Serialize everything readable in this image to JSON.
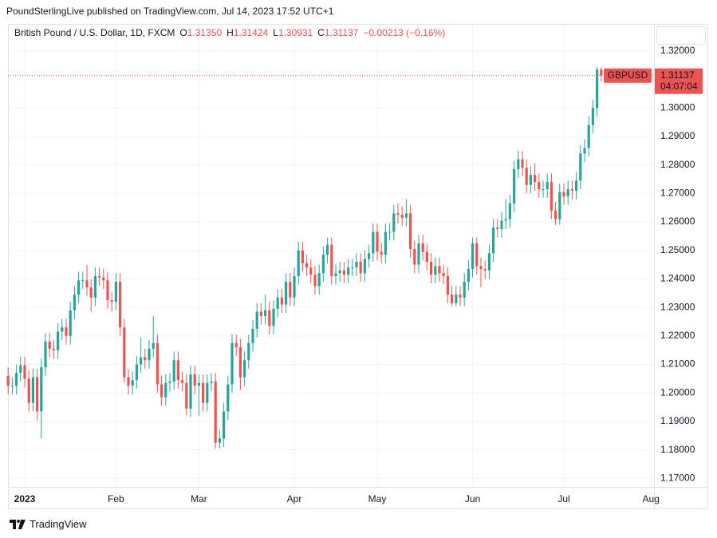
{
  "header": {
    "published": "PoundSterlingLive published on TradingView.com, Jul 14, 2023 17:52 UTC+1",
    "logo": "TradingView"
  },
  "chart_data": {
    "type": "candlestick",
    "title": "British Pound / U.S. Dollar, 1D, FXCM",
    "legend": {
      "o": "O",
      "open": "1.31350",
      "h": "H",
      "l": "L",
      "c": "C",
      "change": "−0.00213 (−0.16%)"
    },
    "symbol_label": "GBPUSD",
    "countdown": "04:07:04",
    "up_color": "#26a69a",
    "down_color": "#ef5350",
    "grid": true,
    "categories": [
      null,
      null,
      null,
      null,
      "2023",
      null,
      null,
      null,
      null,
      null,
      null,
      null,
      null,
      null,
      null,
      null,
      null,
      null,
      null,
      null,
      null,
      null,
      null,
      null,
      null,
      null,
      "Feb",
      null,
      null,
      null,
      null,
      null,
      null,
      null,
      null,
      null,
      null,
      null,
      null,
      null,
      null,
      null,
      null,
      null,
      null,
      null,
      "Mar",
      null,
      null,
      null,
      null,
      null,
      null,
      null,
      null,
      null,
      null,
      null,
      null,
      null,
      null,
      null,
      null,
      null,
      null,
      null,
      null,
      null,
      null,
      "Apr",
      null,
      null,
      null,
      null,
      null,
      null,
      null,
      null,
      null,
      null,
      null,
      null,
      null,
      null,
      null,
      null,
      null,
      null,
      null,
      "May",
      null,
      null,
      null,
      null,
      null,
      null,
      null,
      null,
      null,
      null,
      null,
      null,
      null,
      null,
      null,
      null,
      null,
      null,
      null,
      null,
      null,
      null,
      "Jun",
      null,
      null,
      null,
      null,
      null,
      null,
      null,
      null,
      null,
      null,
      null,
      null,
      null,
      null,
      null,
      null,
      null,
      null,
      null,
      null,
      null,
      "Jul",
      null,
      null,
      null,
      null,
      null,
      null,
      null,
      null,
      null,
      null,
      null,
      null,
      null,
      null,
      null,
      null,
      null,
      null,
      null,
      null,
      "Aug"
    ],
    "open": [
      1.206,
      1.2025,
      1.2025,
      1.207,
      1.2097,
      1.205,
      1.1965,
      1.2055,
      1.1935,
      1.209,
      1.218,
      1.2155,
      1.215,
      1.2215,
      1.223,
      1.22,
      1.229,
      1.2345,
      1.2395,
      1.2395,
      1.237,
      1.2335,
      1.241,
      1.2405,
      1.2395,
      1.2325,
      1.232,
      1.239,
      1.223,
      1.2055,
      1.2025,
      1.2045,
      1.21,
      1.2125,
      1.2115,
      1.2155,
      1.2175,
      1.203,
      1.1985,
      1.2035,
      1.204,
      1.2115,
      1.2045,
      1.2035,
      1.1945,
      1.2065,
      1.2025,
      1.2035,
      1.1965,
      1.2035,
      1.204,
      1.1825,
      1.184,
      1.1935,
      1.203,
      1.2175,
      1.216,
      1.2055,
      1.2115,
      1.2175,
      1.2225,
      1.2285,
      1.227,
      1.229,
      1.2235,
      1.2295,
      1.2335,
      1.231,
      1.239,
      1.2335,
      1.241,
      1.25,
      1.2455,
      1.244,
      1.2415,
      1.2375,
      1.242,
      1.2485,
      1.252,
      1.241,
      1.242,
      1.243,
      1.2415,
      1.244,
      1.244,
      1.246,
      1.242,
      1.247,
      1.249,
      1.2565,
      1.2495,
      1.2485,
      1.2565,
      1.2565,
      1.263,
      1.2625,
      1.2615,
      1.263,
      1.2505,
      1.245,
      1.2525,
      1.2495,
      1.246,
      1.2415,
      1.2445,
      1.242,
      1.241,
      1.2345,
      1.2315,
      1.2345,
      1.2335,
      1.239,
      1.2435,
      1.2525,
      1.2445,
      1.2435,
      1.243,
      1.249,
      1.258,
      1.2575,
      1.2605,
      1.261,
      1.2665,
      1.2785,
      1.282,
      1.279,
      1.273,
      1.2765,
      1.274,
      1.2715,
      1.2715,
      1.274,
      1.264,
      1.261,
      1.2705,
      1.269,
      1.2715,
      1.271,
      1.2745,
      1.284,
      1.286,
      1.294,
      1.3,
      1.3135,
      null,
      null,
      null,
      null,
      null,
      null,
      null,
      null,
      null,
      null,
      null,
      null
    ],
    "high": [
      1.209,
      1.2055,
      1.21,
      1.2127,
      1.2127,
      1.208,
      1.2085,
      1.2085,
      1.212,
      1.221,
      1.221,
      1.2185,
      1.2245,
      1.226,
      1.226,
      1.232,
      1.2375,
      1.2425,
      1.2425,
      1.245,
      1.24,
      1.244,
      1.244,
      1.2435,
      1.2425,
      1.2355,
      1.242,
      1.242,
      1.226,
      1.2085,
      1.2075,
      1.213,
      1.2195,
      1.2155,
      1.2185,
      1.227,
      1.2205,
      1.206,
      1.2065,
      1.207,
      1.2145,
      1.2145,
      1.2075,
      1.2065,
      1.2095,
      1.2095,
      1.2065,
      1.2065,
      1.2065,
      1.207,
      1.207,
      1.187,
      1.1965,
      1.206,
      1.2205,
      1.2205,
      1.219,
      1.2145,
      1.2205,
      1.2255,
      1.2315,
      1.2315,
      1.2345,
      1.232,
      1.2325,
      1.2365,
      1.2365,
      1.242,
      1.242,
      1.244,
      1.253,
      1.253,
      1.2485,
      1.247,
      1.2445,
      1.245,
      1.2515,
      1.2545,
      1.2545,
      1.245,
      1.246,
      1.246,
      1.247,
      1.247,
      1.249,
      1.249,
      1.25,
      1.252,
      1.2595,
      1.2595,
      1.2525,
      1.2595,
      1.2595,
      1.266,
      1.2665,
      1.2655,
      1.268,
      1.266,
      1.2535,
      1.2555,
      1.2555,
      1.2525,
      1.249,
      1.2475,
      1.2475,
      1.245,
      1.244,
      1.2375,
      1.2375,
      1.2375,
      1.242,
      1.2465,
      1.2545,
      1.2545,
      1.2475,
      1.2465,
      1.252,
      1.261,
      1.261,
      1.2635,
      1.268,
      1.2695,
      1.2815,
      1.285,
      1.285,
      1.282,
      1.2795,
      1.2805,
      1.277,
      1.2745,
      1.277,
      1.277,
      1.267,
      1.2735,
      1.2735,
      1.2745,
      1.2745,
      1.2775,
      1.287,
      1.289,
      1.297,
      1.303,
      1.3145,
      1.31424,
      null,
      null,
      null,
      null,
      null,
      null,
      null,
      null,
      null,
      null,
      null,
      null
    ],
    "low": [
      1.1995,
      1.1995,
      1.1995,
      1.204,
      1.202,
      1.1935,
      1.1935,
      1.1905,
      1.184,
      1.206,
      1.2125,
      1.212,
      1.212,
      1.2185,
      1.217,
      1.217,
      1.226,
      1.2315,
      1.2365,
      1.234,
      1.2285,
      1.2305,
      1.2375,
      1.2365,
      1.2295,
      1.2285,
      1.229,
      1.22,
      1.2035,
      1.1995,
      1.1995,
      1.2015,
      1.207,
      1.2085,
      1.2085,
      1.2125,
      1.2,
      1.1955,
      1.1955,
      1.2005,
      1.201,
      1.2015,
      1.2005,
      1.192,
      1.1915,
      1.1995,
      1.192,
      1.1935,
      1.1935,
      1.2005,
      1.1805,
      1.1805,
      1.181,
      1.1905,
      1.2,
      1.213,
      1.201,
      1.2025,
      1.2085,
      1.2145,
      1.2195,
      1.224,
      1.224,
      1.2205,
      1.2205,
      1.2265,
      1.228,
      1.228,
      1.2305,
      1.2305,
      1.238,
      1.2425,
      1.241,
      1.2385,
      1.2345,
      1.2345,
      1.239,
      1.2455,
      1.238,
      1.238,
      1.239,
      1.2385,
      1.2385,
      1.241,
      1.241,
      1.239,
      1.239,
      1.244,
      1.246,
      1.2465,
      1.2455,
      1.2455,
      1.2535,
      1.2535,
      1.2595,
      1.2585,
      1.2585,
      1.2475,
      1.242,
      1.242,
      1.2465,
      1.243,
      1.2385,
      1.2385,
      1.239,
      1.238,
      1.2315,
      1.2305,
      1.2305,
      1.2305,
      1.2305,
      1.236,
      1.2405,
      1.2415,
      1.237,
      1.24,
      1.24,
      1.246,
      1.2545,
      1.2545,
      1.2575,
      1.258,
      1.2635,
      1.2755,
      1.276,
      1.27,
      1.27,
      1.271,
      1.2685,
      1.2685,
      1.2685,
      1.261,
      1.259,
      1.259,
      1.266,
      1.266,
      1.268,
      1.268,
      1.2715,
      1.281,
      1.283,
      1.291,
      1.297,
      1.30931,
      null,
      null,
      null,
      null,
      null,
      null,
      null,
      null,
      null,
      null,
      null,
      null
    ],
    "close": [
      1.2025,
      1.2025,
      1.207,
      1.2097,
      1.205,
      1.1965,
      1.2055,
      1.1935,
      1.209,
      1.218,
      1.2155,
      1.215,
      1.2215,
      1.223,
      1.22,
      1.229,
      1.2345,
      1.2395,
      1.2395,
      1.237,
      1.2335,
      1.241,
      1.2405,
      1.2395,
      1.2325,
      1.232,
      1.239,
      1.223,
      1.2055,
      1.2025,
      1.2045,
      1.21,
      1.2125,
      1.2115,
      1.2155,
      1.2175,
      1.203,
      1.1985,
      1.2035,
      1.204,
      1.2115,
      1.2045,
      1.2035,
      1.1945,
      1.2065,
      1.2025,
      1.2035,
      1.1965,
      1.2035,
      1.204,
      1.1825,
      1.184,
      1.1935,
      1.203,
      1.2175,
      1.216,
      1.2055,
      1.2115,
      1.2175,
      1.2225,
      1.2285,
      1.227,
      1.229,
      1.2235,
      1.2295,
      1.2335,
      1.231,
      1.239,
      1.2335,
      1.241,
      1.25,
      1.2455,
      1.244,
      1.2415,
      1.2375,
      1.242,
      1.2485,
      1.252,
      1.241,
      1.242,
      1.243,
      1.2415,
      1.244,
      1.244,
      1.246,
      1.242,
      1.247,
      1.249,
      1.2565,
      1.2495,
      1.2485,
      1.2565,
      1.2565,
      1.263,
      1.2625,
      1.2615,
      1.263,
      1.2505,
      1.245,
      1.2525,
      1.2495,
      1.246,
      1.2415,
      1.2445,
      1.242,
      1.241,
      1.2345,
      1.2315,
      1.2345,
      1.2335,
      1.239,
      1.2435,
      1.2525,
      1.2445,
      1.2435,
      1.243,
      1.249,
      1.258,
      1.2575,
      1.2605,
      1.261,
      1.2665,
      1.2785,
      1.282,
      1.279,
      1.273,
      1.2765,
      1.274,
      1.2715,
      1.2715,
      1.274,
      1.264,
      1.261,
      1.2705,
      1.269,
      1.2715,
      1.271,
      1.2745,
      1.284,
      1.286,
      1.294,
      1.3,
      1.3135,
      1.31137,
      null,
      null,
      null,
      null,
      null,
      null,
      null,
      null,
      null,
      null,
      null,
      null
    ],
    "ylim": [
      1.167,
      1.3295
    ],
    "yticks": [
      {
        "value": 1.17,
        "label": "1.17000"
      },
      {
        "value": 1.18,
        "label": "1.18000"
      },
      {
        "value": 1.19,
        "label": "1.19000"
      },
      {
        "value": 1.2,
        "label": "1.20000"
      },
      {
        "value": 1.21,
        "label": "1.21000"
      },
      {
        "value": 1.22,
        "label": "1.22000"
      },
      {
        "value": 1.23,
        "label": "1.23000"
      },
      {
        "value": 1.24,
        "label": "1.24000"
      },
      {
        "value": 1.25,
        "label": "1.25000"
      },
      {
        "value": 1.26,
        "label": "1.26000"
      },
      {
        "value": 1.27,
        "label": "1.27000"
      },
      {
        "value": 1.28,
        "label": "1.28000"
      },
      {
        "value": 1.29,
        "label": "1.29000"
      },
      {
        "value": 1.3,
        "label": "1.30000"
      },
      {
        "value": 1.31,
        "label": "1.31000"
      },
      {
        "value": 1.32,
        "label": "1.32000"
      }
    ]
  }
}
